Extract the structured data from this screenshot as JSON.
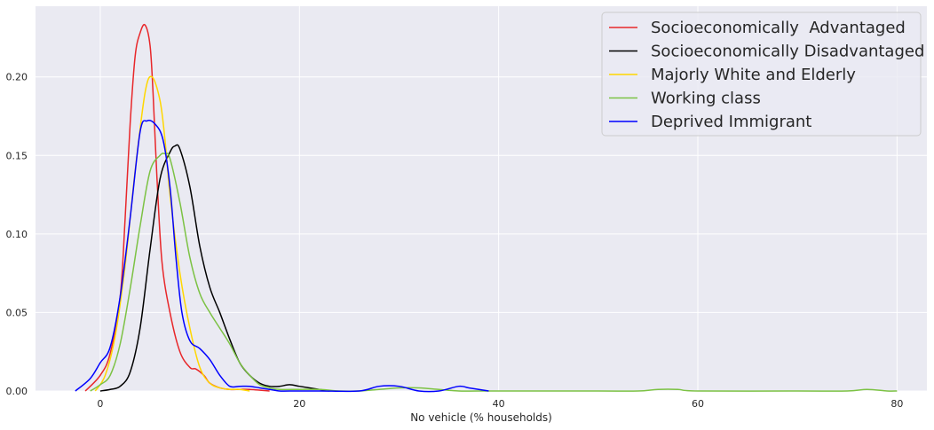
{
  "chart_data": {
    "type": "line",
    "title": "",
    "xlabel": "No vehicle (% households)",
    "ylabel": "",
    "xlim": [
      -6.5,
      83
    ],
    "ylim": [
      0,
      0.245
    ],
    "xticks": [
      0,
      20,
      40,
      60,
      80
    ],
    "yticks": [
      0.0,
      0.05,
      0.1,
      0.15,
      0.2
    ],
    "xtick_labels": [
      "0",
      "20",
      "40",
      "60",
      "80"
    ],
    "ytick_labels": [
      "0.00",
      "0.05",
      "0.10",
      "0.15",
      "0.20"
    ],
    "grid": true,
    "legend_position": "top-right",
    "series": [
      {
        "name": "Socioeconomically  Advantaged",
        "color": "#e8272a",
        "x": [
          -1.5,
          0,
          1,
          2,
          2.5,
          3,
          3.5,
          4,
          4.5,
          5,
          5.3,
          5.7,
          6.2,
          7,
          8,
          9,
          9.6,
          10.4,
          11,
          12,
          13,
          14,
          15,
          17
        ],
        "y": [
          0.0,
          0.01,
          0.024,
          0.06,
          0.11,
          0.17,
          0.213,
          0.228,
          0.233,
          0.22,
          0.19,
          0.135,
          0.082,
          0.05,
          0.025,
          0.015,
          0.014,
          0.01,
          0.005,
          0.002,
          0.001,
          0.001,
          0.001,
          0.0
        ]
      },
      {
        "name": "Socioeconomically Disadvantaged",
        "color": "#000000",
        "x": [
          0,
          1,
          2,
          3,
          4,
          5,
          6,
          7,
          7.5,
          8,
          9,
          10,
          11,
          12,
          13,
          14,
          15,
          16,
          17,
          18,
          19,
          20,
          21,
          22,
          23
        ],
        "y": [
          0.0,
          0.001,
          0.003,
          0.012,
          0.04,
          0.09,
          0.135,
          0.152,
          0.156,
          0.154,
          0.13,
          0.092,
          0.066,
          0.05,
          0.033,
          0.018,
          0.01,
          0.005,
          0.003,
          0.003,
          0.004,
          0.003,
          0.002,
          0.001,
          0.0
        ]
      },
      {
        "name": "Majorly White and Elderly",
        "color": "#ffd700",
        "x": [
          -0.5,
          0.5,
          1.5,
          2.5,
          3.5,
          4.5,
          5.2,
          6,
          6.5,
          7,
          8,
          9,
          10,
          11,
          12,
          13,
          14,
          15
        ],
        "y": [
          0.0,
          0.01,
          0.035,
          0.08,
          0.14,
          0.19,
          0.2,
          0.185,
          0.16,
          0.125,
          0.075,
          0.04,
          0.015,
          0.005,
          0.002,
          0.001,
          0.001,
          0.0
        ]
      },
      {
        "name": "Working class",
        "color": "#7cc244",
        "x": [
          -1,
          0,
          1,
          2,
          3,
          4,
          5,
          6,
          6.5,
          7,
          8,
          9,
          10,
          11,
          12,
          13,
          14,
          15,
          16,
          17,
          18,
          20,
          22,
          24,
          26,
          28,
          30,
          32,
          34,
          36,
          38,
          42,
          50,
          54,
          56,
          58,
          60,
          70,
          75,
          77,
          79,
          80
        ],
        "y": [
          0.0,
          0.004,
          0.01,
          0.03,
          0.065,
          0.105,
          0.14,
          0.15,
          0.151,
          0.148,
          0.12,
          0.085,
          0.062,
          0.05,
          0.04,
          0.03,
          0.018,
          0.01,
          0.004,
          0.002,
          0.001,
          0.001,
          0.001,
          0.0,
          0.0,
          0.001,
          0.002,
          0.002,
          0.001,
          0.0,
          0.0,
          0.0,
          0.0,
          0.0,
          0.001,
          0.001,
          0.0,
          0.0,
          0.0,
          0.001,
          0.0,
          0.0
        ]
      },
      {
        "name": "Deprived Immigrant",
        "color": "#0000ff",
        "x": [
          -2.5,
          -1,
          0,
          1,
          2,
          3,
          4,
          4.7,
          5.5,
          6.3,
          7,
          7.6,
          8.2,
          9,
          10,
          11,
          12,
          13,
          14,
          15,
          16,
          17,
          18,
          19,
          22,
          26,
          28,
          30,
          32,
          34,
          36,
          37,
          39
        ],
        "y": [
          0.0,
          0.008,
          0.018,
          0.028,
          0.06,
          0.11,
          0.165,
          0.172,
          0.17,
          0.16,
          0.13,
          0.085,
          0.05,
          0.032,
          0.027,
          0.02,
          0.01,
          0.003,
          0.003,
          0.003,
          0.002,
          0.001,
          0.0,
          0.0,
          0.0,
          0.0,
          0.003,
          0.003,
          0.0,
          0.0,
          0.003,
          0.002,
          0.0
        ]
      }
    ]
  }
}
